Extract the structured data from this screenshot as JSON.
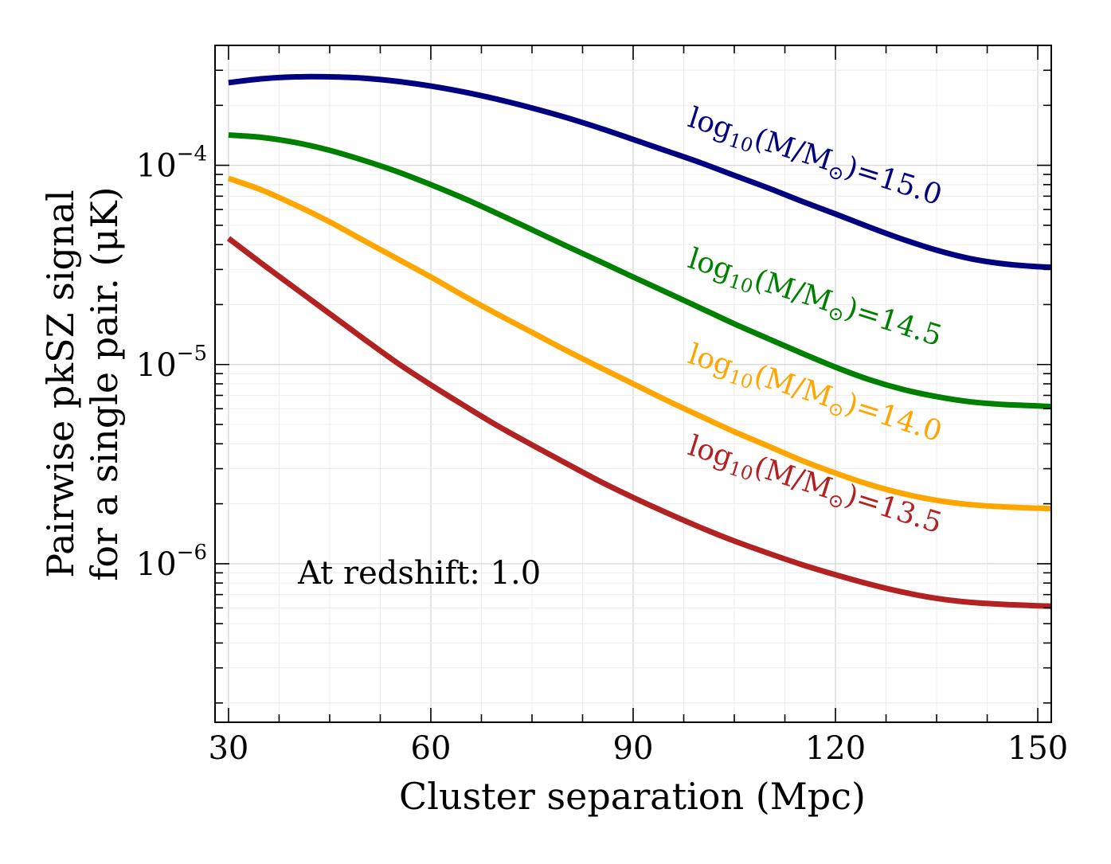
{
  "chart_data": {
    "type": "line",
    "title": "",
    "xlabel": "Cluster separation (Mpc)",
    "ylabel_line1": "Pairwise pkSZ signal",
    "ylabel_line2": "for a single pair. (μK)",
    "xlim": [
      28,
      152
    ],
    "ylim": [
      1.6e-07,
      0.0004
    ],
    "yscale": "log",
    "grid": true,
    "x_ticks": [
      30,
      60,
      90,
      120,
      150
    ],
    "x_tick_labels": [
      "30",
      "60",
      "90",
      "120",
      "150"
    ],
    "y_ticks": [
      1e-06,
      1e-05,
      0.0001
    ],
    "y_tick_labels": [
      {
        "base": "10",
        "exp": "−6"
      },
      {
        "base": "10",
        "exp": "−5"
      },
      {
        "base": "10",
        "exp": "−4"
      }
    ],
    "annotation": "At redshift: 1.0",
    "series": [
      {
        "name": "log10(M/M⊙)=15.0",
        "label_parts": {
          "prefix": "log",
          "sub": "10",
          "body": "(M/M",
          "sub2": "⊙",
          "tail": ")=15.0"
        },
        "color": "#000080",
        "x": [
          30,
          35,
          40,
          45,
          50,
          55,
          60,
          65,
          70,
          75,
          80,
          85,
          90,
          95,
          100,
          105,
          110,
          115,
          120,
          125,
          130,
          135,
          140,
          145,
          150,
          152
        ],
        "y": [
          0.00026,
          0.000272,
          0.000278,
          0.000278,
          0.000274,
          0.000264,
          0.00025,
          0.000233,
          0.000214,
          0.000194,
          0.000174,
          0.000154,
          0.000135,
          0.000118,
          0.000103,
          8.9e-05,
          7.7e-05,
          6.6e-05,
          5.7e-05,
          4.9e-05,
          4.25e-05,
          3.75e-05,
          3.4e-05,
          3.2e-05,
          3.1e-05,
          3.08e-05
        ]
      },
      {
        "name": "log10(M/M⊙)=14.5",
        "label_parts": {
          "prefix": "log",
          "sub": "10",
          "body": "(M/M",
          "sub2": "⊙",
          "tail": ")=14.5"
        },
        "color": "#008000",
        "x": [
          30,
          35,
          40,
          45,
          50,
          55,
          60,
          65,
          70,
          75,
          80,
          85,
          90,
          95,
          100,
          105,
          110,
          115,
          120,
          125,
          130,
          135,
          140,
          145,
          150,
          152
        ],
        "y": [
          0.000142,
          0.000138,
          0.00013,
          0.000119,
          0.000106,
          9.3e-05,
          8e-05,
          6.8e-05,
          5.7e-05,
          4.75e-05,
          3.95e-05,
          3.3e-05,
          2.75e-05,
          2.3e-05,
          1.92e-05,
          1.6e-05,
          1.35e-05,
          1.14e-05,
          9.7e-06,
          8.4e-06,
          7.5e-06,
          6.9e-06,
          6.5e-06,
          6.3e-06,
          6.2e-06,
          6.15e-06
        ]
      },
      {
        "name": "log10(M/M⊙)=14.0",
        "label_parts": {
          "prefix": "log",
          "sub": "10",
          "body": "(M/M",
          "sub2": "⊙",
          "tail": ")=14.0"
        },
        "color": "#FFA500",
        "x": [
          30,
          35,
          40,
          45,
          50,
          55,
          60,
          65,
          70,
          75,
          80,
          85,
          90,
          95,
          100,
          105,
          110,
          115,
          120,
          125,
          130,
          135,
          140,
          145,
          150,
          152
        ],
        "y": [
          8.6e-05,
          7.5e-05,
          6.3e-05,
          5.2e-05,
          4.2e-05,
          3.4e-05,
          2.75e-05,
          2.2e-05,
          1.78e-05,
          1.45e-05,
          1.18e-05,
          9.7e-06,
          8e-06,
          6.6e-06,
          5.5e-06,
          4.6e-06,
          3.9e-06,
          3.3e-06,
          2.85e-06,
          2.5e-06,
          2.25e-06,
          2.08e-06,
          1.98e-06,
          1.93e-06,
          1.9e-06,
          1.89e-06
        ]
      },
      {
        "name": "log10(M/M⊙)=13.5",
        "label_parts": {
          "prefix": "log",
          "sub": "10",
          "body": "(M/M",
          "sub2": "⊙",
          "tail": ")=13.5"
        },
        "color": "#B22222",
        "x": [
          30,
          35,
          40,
          45,
          50,
          55,
          60,
          65,
          70,
          75,
          80,
          85,
          90,
          95,
          100,
          105,
          110,
          115,
          120,
          125,
          130,
          135,
          140,
          145,
          150,
          152
        ],
        "y": [
          4.3e-05,
          3.2e-05,
          2.4e-05,
          1.8e-05,
          1.35e-05,
          1.02e-05,
          7.9e-06,
          6.2e-06,
          4.9e-06,
          3.95e-06,
          3.2e-06,
          2.6e-06,
          2.15e-06,
          1.8e-06,
          1.52e-06,
          1.3e-06,
          1.13e-06,
          9.9e-07,
          8.8e-07,
          7.9e-07,
          7.2e-07,
          6.7e-07,
          6.4e-07,
          6.25e-07,
          6.15e-07,
          6.12e-07
        ]
      }
    ]
  }
}
